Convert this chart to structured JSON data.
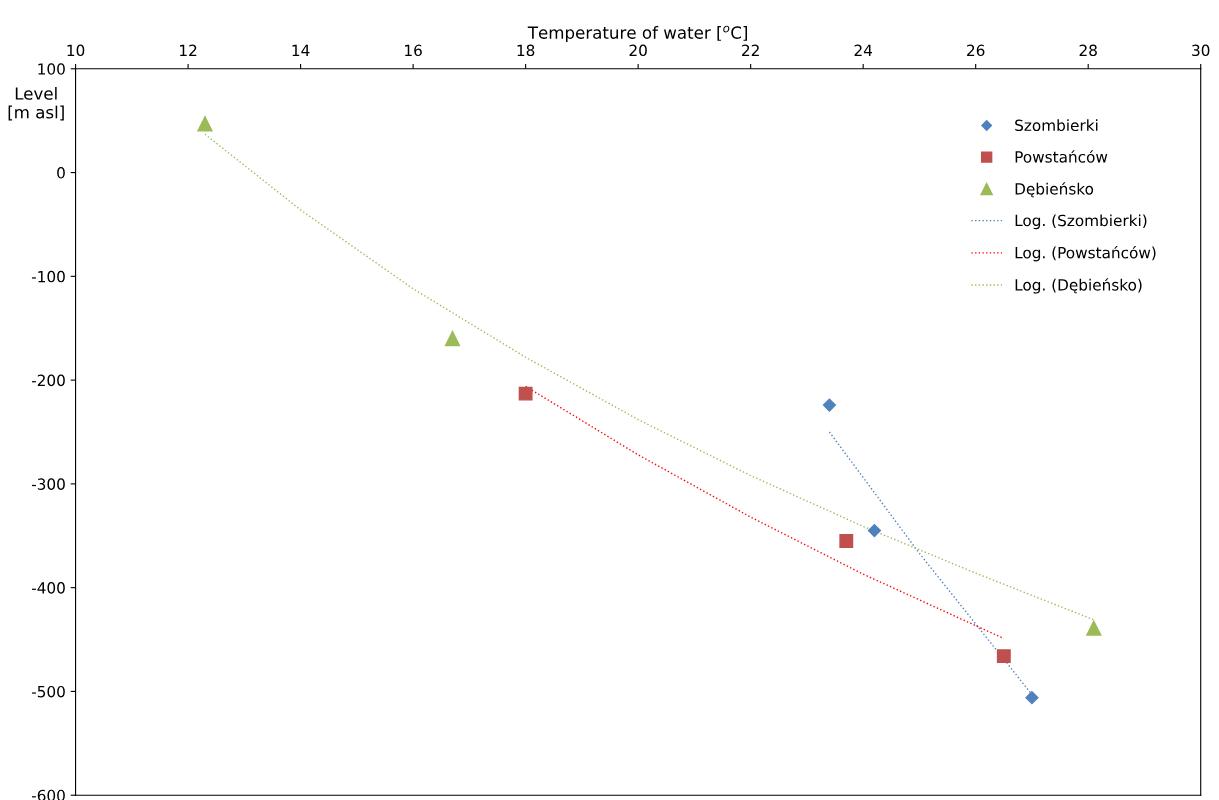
{
  "chart_data": {
    "type": "scatter",
    "xlabel": "Temperature of water [$^{o}$C]",
    "ylabel": "Level\n[m asl]",
    "xlim": [
      10,
      30
    ],
    "xticks": [
      10,
      12,
      14,
      16,
      18,
      20,
      22,
      24,
      26,
      28,
      30
    ],
    "ylim": [
      -600,
      100
    ],
    "yticks": [
      -600,
      -500,
      -400,
      -300,
      -200,
      -100,
      0,
      100
    ],
    "grid": false,
    "legend": "top right",
    "series": [
      {
        "name": "Szombierki",
        "marker": "diamond",
        "color": "#4f81bd",
        "x": [
          23.4,
          24.2,
          27.0
        ],
        "values": [
          -224,
          -345,
          -506
        ]
      },
      {
        "name": "Powstańców",
        "marker": "square",
        "color": "#c0504d",
        "x": [
          18.0,
          23.7,
          26.5
        ],
        "values": [
          -213,
          -355,
          -466
        ]
      },
      {
        "name": "Dębieńsko",
        "marker": "triangle",
        "color": "#9bbb59",
        "x": [
          12.3,
          16.7,
          28.1
        ],
        "values": [
          47,
          -160,
          -439
        ]
      },
      {
        "name": "Log. (Szombierki)",
        "type": "line",
        "marker": "none",
        "line_style": "dotted",
        "color": "#4f81bd",
        "x": [
          23.4,
          25.0,
          27.0
        ],
        "values": [
          -250,
          -367,
          -503
        ]
      },
      {
        "name": "Log. (Powstańców)",
        "type": "line",
        "marker": "none",
        "line_style": "dotted",
        "color": "#ff0000",
        "x": [
          18.0,
          20.0,
          22.0,
          24.0,
          26.5
        ],
        "values": [
          -206,
          -272,
          -332,
          -387,
          -449
        ]
      },
      {
        "name": "Log. (Dębieńsko)",
        "type": "line",
        "marker": "none",
        "line_style": "dotted",
        "color": "#9bbb59",
        "x": [
          12.3,
          14.0,
          16.0,
          18.0,
          20.0,
          22.0,
          24.0,
          26.0,
          28.1
        ],
        "values": [
          37,
          -36,
          -112,
          -178,
          -238,
          -292,
          -341,
          -386,
          -431
        ]
      }
    ]
  }
}
